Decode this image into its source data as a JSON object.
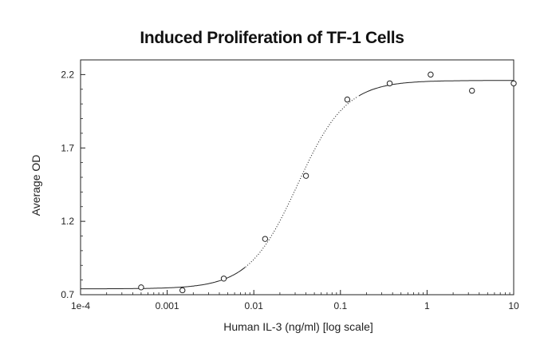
{
  "chart_data": {
    "type": "scatter",
    "title": "Induced Proliferation of TF-1 Cells",
    "xlabel": "Human IL-3 (ng/ml) [log scale]",
    "ylabel": "Average OD",
    "x_scale": "log",
    "xlim": [
      0.0001,
      10
    ],
    "ylim": [
      0.7,
      2.3
    ],
    "x_ticks": [
      {
        "value": 0.0001,
        "label": "1e-4"
      },
      {
        "value": 0.001,
        "label": "0.001"
      },
      {
        "value": 0.01,
        "label": "0.01"
      },
      {
        "value": 0.1,
        "label": "0.1"
      },
      {
        "value": 1,
        "label": "1"
      },
      {
        "value": 10,
        "label": "10"
      }
    ],
    "y_ticks": [
      {
        "value": 0.7,
        "label": "0.7"
      },
      {
        "value": 1.2,
        "label": "1.2"
      },
      {
        "value": 1.7,
        "label": "1.7"
      },
      {
        "value": 2.2,
        "label": "2.2"
      }
    ],
    "grid": false,
    "legend": "none",
    "points": [
      {
        "x": 0.0005,
        "y": 0.75
      },
      {
        "x": 0.0015,
        "y": 0.73
      },
      {
        "x": 0.0045,
        "y": 0.81
      },
      {
        "x": 0.0135,
        "y": 1.08
      },
      {
        "x": 0.04,
        "y": 1.51
      },
      {
        "x": 0.12,
        "y": 2.03
      },
      {
        "x": 0.37,
        "y": 2.14
      },
      {
        "x": 1.1,
        "y": 2.2
      },
      {
        "x": 3.3,
        "y": 2.09
      },
      {
        "x": 10,
        "y": 2.14
      }
    ],
    "fit_curve": {
      "bottom": 0.74,
      "top": 2.16,
      "ec50": 0.032,
      "hill": 1.55
    },
    "colors": {
      "axis": "#222222",
      "marker": "#222222",
      "curve": "#222222"
    }
  }
}
